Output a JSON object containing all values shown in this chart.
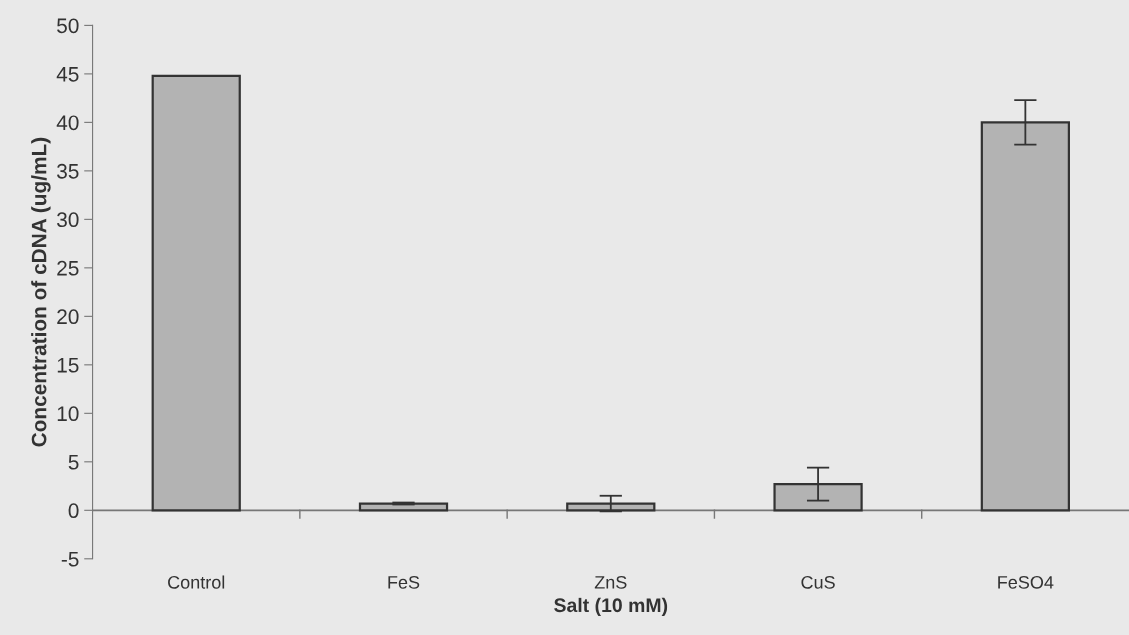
{
  "chart_data": {
    "type": "bar",
    "xlabel": "Salt (10 mM)",
    "ylabel": "Concentration of cDNA (ug/mL)",
    "categories": [
      "Control",
      "FeS",
      "ZnS",
      "CuS",
      "FeSO4"
    ],
    "values": [
      44.8,
      0.7,
      0.7,
      2.7,
      40.0
    ],
    "errors": [
      null,
      0.1,
      0.8,
      1.7,
      2.3
    ],
    "color": "#b3b3b3",
    "ylim": [
      -5,
      50
    ],
    "yticks": [
      -5,
      0,
      5,
      10,
      15,
      20,
      25,
      30,
      35,
      40,
      45,
      50
    ]
  }
}
